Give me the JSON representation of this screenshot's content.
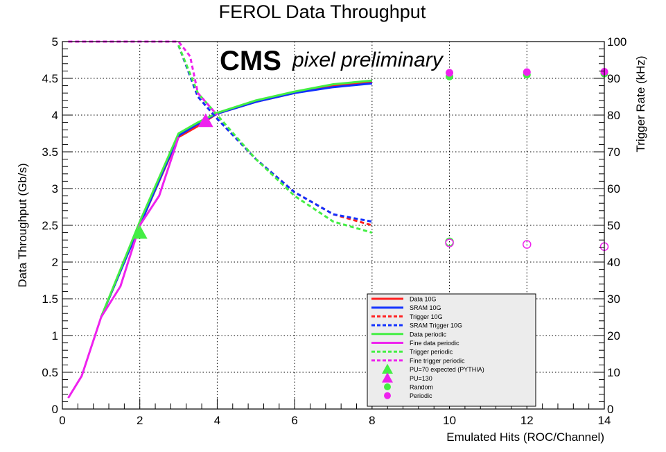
{
  "chart_data": {
    "type": "line",
    "title": "FEROL Data Throughput",
    "annotation_bold": "CMS",
    "annotation_italic": "pixel preliminary",
    "xlabel": "Emulated Hits (ROC/Channel)",
    "ylabel": "Data Throughput (Gb/s)",
    "ylabel_right": "Trigger Rate (kHz)",
    "xlim": [
      0,
      14
    ],
    "ylim": [
      0,
      5
    ],
    "ylim_right": [
      0,
      100
    ],
    "x_ticks": [
      0,
      2,
      4,
      6,
      8,
      10,
      12,
      14
    ],
    "y_ticks": [
      0,
      0.5,
      1,
      1.5,
      2,
      2.5,
      3,
      3.5,
      4,
      4.5,
      5
    ],
    "y_ticks_right": [
      0,
      10,
      20,
      30,
      40,
      50,
      60,
      70,
      80,
      90,
      100
    ],
    "x_tick_labels": [
      "0",
      "2",
      "4",
      "6",
      "8",
      "10",
      "12",
      "14"
    ],
    "y_tick_labels": [
      "0",
      "0.5",
      "1",
      "1.5",
      "2",
      "2.5",
      "3",
      "3.5",
      "4",
      "4.5",
      "5"
    ],
    "y_tick_labels_right": [
      "0",
      "10",
      "20",
      "30",
      "40",
      "50",
      "60",
      "70",
      "80",
      "90",
      "100"
    ],
    "grid": true,
    "legend_position": "bottom-right",
    "legend": [
      {
        "label": "Data 10G",
        "style": "solid",
        "color": "#ff2020"
      },
      {
        "label": "SRAM 10G",
        "style": "solid",
        "color": "#1030ff"
      },
      {
        "label": "Trigger 10G",
        "style": "dashed",
        "color": "#ff2020"
      },
      {
        "label": "SRAM Trigger 10G",
        "style": "dashed",
        "color": "#1030ff"
      },
      {
        "label": "Data periodic",
        "style": "solid",
        "color": "#44ee44"
      },
      {
        "label": "Fine data periodic",
        "style": "solid",
        "color": "#ee22ee"
      },
      {
        "label": "Trigger periodic",
        "style": "dashed",
        "color": "#44ee44"
      },
      {
        "label": "Fine trigger periodic",
        "style": "dashed",
        "color": "#ee22ee"
      },
      {
        "label": "PU=70 expected (PYTHIA)",
        "style": "triangle",
        "color": "#44ee44"
      },
      {
        "label": "PU=130",
        "style": "triangle",
        "color": "#ee22ee"
      },
      {
        "label": "Random",
        "style": "circle",
        "color": "#44ee44"
      },
      {
        "label": "Periodic",
        "style": "circle",
        "color": "#ee22ee"
      }
    ],
    "series": [
      {
        "name": "Data 10G",
        "axis": "left",
        "style": "solid",
        "color": "#ff2020",
        "x": [
          1,
          2,
          3,
          3.5,
          4,
          5,
          6,
          7,
          8
        ],
        "y": [
          1.25,
          2.5,
          3.7,
          3.85,
          4.02,
          4.18,
          4.3,
          4.4,
          4.45
        ]
      },
      {
        "name": "SRAM 10G",
        "axis": "left",
        "style": "solid",
        "color": "#1030ff",
        "x": [
          1,
          2,
          3,
          3.5,
          4,
          5,
          6,
          7,
          8
        ],
        "y": [
          1.25,
          2.5,
          3.72,
          3.88,
          4.02,
          4.18,
          4.3,
          4.38,
          4.43
        ]
      },
      {
        "name": "Data periodic",
        "axis": "left",
        "style": "solid",
        "color": "#44ee44",
        "x": [
          1,
          2,
          3,
          3.5,
          4,
          5,
          6,
          7,
          8
        ],
        "y": [
          1.25,
          2.55,
          3.75,
          3.9,
          4.03,
          4.2,
          4.32,
          4.42,
          4.47
        ]
      },
      {
        "name": "Fine data periodic",
        "axis": "left",
        "style": "solid",
        "color": "#ee22ee",
        "x": [
          0.15,
          0.5,
          1,
          1.5,
          2,
          2.5,
          3
        ],
        "y": [
          0.15,
          0.45,
          1.25,
          1.67,
          2.5,
          2.9,
          3.7
        ]
      },
      {
        "name": "Trigger 10G",
        "axis": "right",
        "style": "dashed",
        "color": "#ff2020",
        "x": [
          3,
          3.5,
          4,
          5,
          6,
          7,
          8
        ],
        "y": [
          99,
          85,
          79,
          68,
          59,
          53,
          50
        ]
      },
      {
        "name": "SRAM Trigger 10G",
        "axis": "right",
        "style": "dashed",
        "color": "#1030ff",
        "x": [
          3,
          3.5,
          4,
          5,
          6,
          7,
          8
        ],
        "y": [
          99,
          85,
          79,
          68,
          59,
          53,
          51
        ]
      },
      {
        "name": "Trigger periodic",
        "axis": "right",
        "style": "dashed",
        "color": "#44ee44",
        "x": [
          3,
          3.5,
          4,
          5,
          6,
          7,
          8
        ],
        "y": [
          99,
          86,
          80,
          68,
          58,
          51,
          48
        ]
      },
      {
        "name": "Fine trigger periodic",
        "axis": "right",
        "style": "dashed",
        "color": "#ee22ee",
        "x": [
          0.15,
          1,
          2,
          3,
          3.3,
          3.5,
          4
        ],
        "y": [
          100,
          100,
          100,
          100,
          96,
          86,
          80
        ]
      }
    ],
    "markers": [
      {
        "name": "PU=70 expected (PYTHIA)",
        "shape": "triangle",
        "color": "#44ee44",
        "axis": "left",
        "x": 2,
        "y": 2.4
      },
      {
        "name": "PU=130",
        "shape": "triangle",
        "color": "#ee22ee",
        "axis": "left",
        "x": 3.7,
        "y": 3.92
      }
    ],
    "points": [
      {
        "name": "Random",
        "shape": "circle",
        "color": "#44ee44",
        "fill": "filled",
        "axis": "right",
        "x": [
          10,
          12,
          14
        ],
        "y": [
          90.5,
          91,
          91.3
        ]
      },
      {
        "name": "Periodic",
        "shape": "circle",
        "color": "#ee22ee",
        "fill": "filled",
        "axis": "right",
        "x": [
          10,
          12,
          14
        ],
        "y": [
          91.5,
          91.7,
          91.8
        ]
      },
      {
        "name": "Random",
        "shape": "circle",
        "color": "#44ee44",
        "fill": "open",
        "axis": "right",
        "x": [
          10
        ],
        "y": [
          45.5
        ]
      },
      {
        "name": "Periodic",
        "shape": "circle",
        "color": "#ee22ee",
        "fill": "open",
        "axis": "right",
        "x": [
          10,
          12,
          14
        ],
        "y": [
          45.2,
          44.8,
          44.2
        ]
      }
    ]
  }
}
